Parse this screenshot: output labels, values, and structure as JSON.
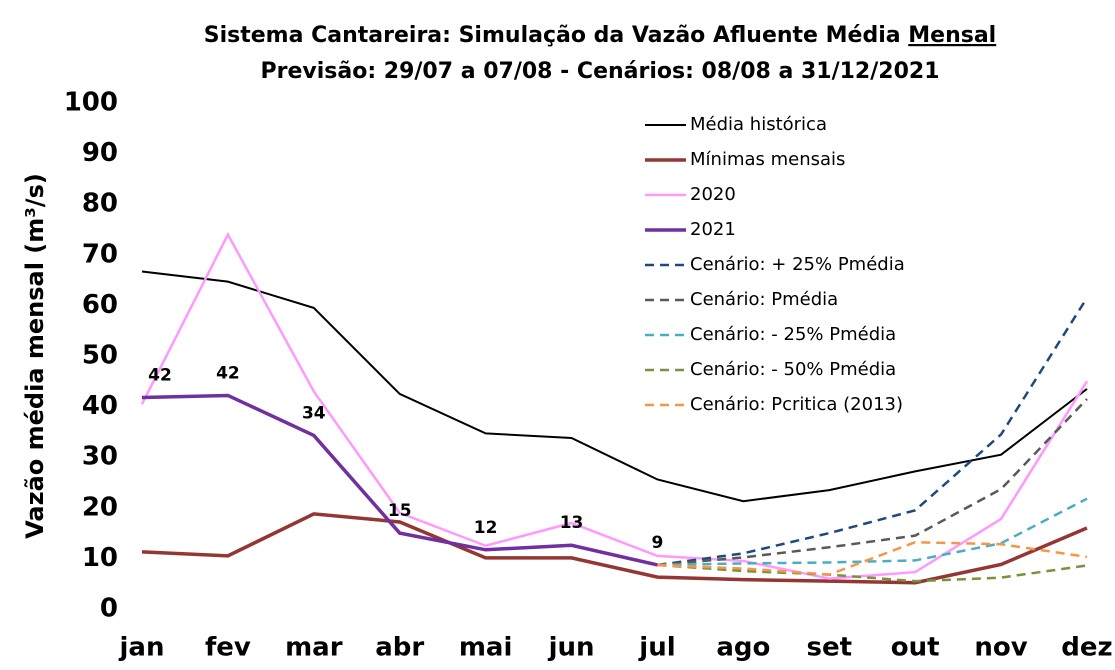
{
  "chart_data": {
    "type": "line",
    "title": "Sistema Cantareira: Simulação da Vazão Afluente Média",
    "title_underlined": "Mensal",
    "subtitle": "Previsão: 29/07 a 07/08 - Cenários: 08/08 a 31/12/2021",
    "y_label": "Vazão média mensal (m³/s)",
    "categories": [
      "jan",
      "fev",
      "mar",
      "abr",
      "mai",
      "jun",
      "jul",
      "ago",
      "set",
      "out",
      "nov",
      "dez"
    ],
    "ylim": [
      0,
      100
    ],
    "yticks": [
      0,
      10,
      20,
      30,
      40,
      50,
      60,
      70,
      80,
      90,
      100
    ],
    "grid": false,
    "legend": "top-right",
    "series": [
      {
        "name": "Média histórica",
        "color": "#000000",
        "width": 2,
        "dash": false,
        "values": [
          66.7,
          64.7,
          59.5,
          42.5,
          34.7,
          33.8,
          25.6,
          21.3,
          23.5,
          27.2,
          30.5,
          43.5
        ]
      },
      {
        "name": "Mínimas mensais",
        "color": "#943634",
        "width": 3.5,
        "dash": false,
        "values": [
          11.3,
          10.5,
          18.8,
          17.2,
          10.1,
          10.1,
          6.3,
          5.8,
          5.5,
          5.2,
          8.8,
          16.0
        ]
      },
      {
        "name": "2020",
        "color": "#ff99ff",
        "width": 2.5,
        "dash": false,
        "values": [
          40.5,
          74,
          43,
          19,
          12.5,
          17,
          10.5,
          9.5,
          6,
          7.3,
          17.8,
          45
        ]
      },
      {
        "name": "2021",
        "color": "#7030a0",
        "width": 3.5,
        "dash": false,
        "values": [
          41.8,
          42.2,
          34.3,
          15.0,
          11.7,
          12.6,
          8.7,
          null,
          null,
          null,
          null,
          null
        ],
        "value_labels": [
          "42",
          "42",
          "34",
          "15",
          "12",
          "13",
          "9",
          null,
          null,
          null,
          null,
          null
        ]
      },
      {
        "name": "Cenário: + 25% Pmédia",
        "color": "#1f497d",
        "width": 2.5,
        "dash": true,
        "values": [
          null,
          null,
          null,
          null,
          null,
          null,
          8.7,
          11,
          15,
          19.5,
          34.5,
          61.5
        ]
      },
      {
        "name": "Cenário: Pmédia",
        "color": "#595959",
        "width": 2.5,
        "dash": true,
        "values": [
          null,
          null,
          null,
          null,
          null,
          null,
          8.7,
          10.2,
          12.2,
          14.5,
          23.7,
          41.5
        ]
      },
      {
        "name": "Cenário: - 25% Pmédia",
        "color": "#4bacc6",
        "width": 2.5,
        "dash": true,
        "values": [
          null,
          null,
          null,
          null,
          null,
          null,
          8.7,
          9,
          9.2,
          9.6,
          13,
          21.8
        ]
      },
      {
        "name": "Cenário: - 50% Pmédia",
        "color": "#77933c",
        "width": 2.5,
        "dash": true,
        "values": [
          null,
          null,
          null,
          null,
          null,
          null,
          8.7,
          7.5,
          6.8,
          5.5,
          6.2,
          8.6
        ]
      },
      {
        "name": "Cenário: Pcritica (2013)",
        "color": "#f79646",
        "width": 2.5,
        "dash": true,
        "values": [
          null,
          null,
          null,
          null,
          null,
          null,
          8.7,
          8,
          6.8,
          13.2,
          12.8,
          10.3
        ]
      }
    ]
  }
}
